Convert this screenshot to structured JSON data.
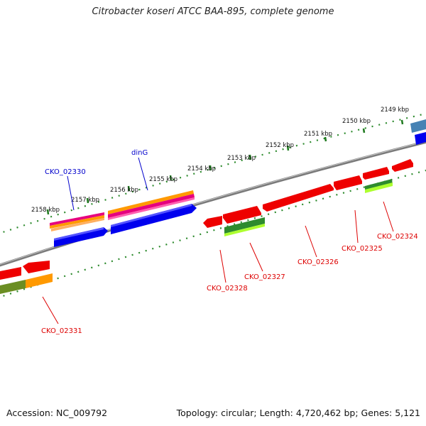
{
  "title": "Citrobacter koseri ATCC BAA-895, complete genome",
  "footer": {
    "accession": "Accession: NC_009792",
    "topology": "Topology: circular; Length: 4,720,462 bp; Genes: 5,121"
  },
  "scale_labels": [
    "2149 kbp",
    "2150 kbp",
    "2151 kbp",
    "2152 kbp",
    "2153 kbp",
    "2154 kbp",
    "2155 kbp",
    "2156 kbp",
    "2157 kbp",
    "2158 kbp"
  ],
  "gene_labels": {
    "CKO_02330": "CKO_02330",
    "dinG": "dinG",
    "CKO_02331": "CKO_02331",
    "CKO_02328": "CKO_02328",
    "CKO_02327": "CKO_02327",
    "CKO_02326": "CKO_02326",
    "CKO_02325": "CKO_02325",
    "CKO_02324": "CKO_02324"
  },
  "colors": {
    "backbone": "#808080",
    "scale_dots": "#228b22",
    "forward_cds": "#0000ee",
    "reverse_cds": "#ee0000",
    "label_forward": "#0000cc",
    "label_reverse": "#dd0000",
    "orange_feature": "#ff9900",
    "magenta_feature": "#e6007e",
    "green_feature": "#2e8b2e",
    "lime_feature": "#adff2f",
    "olive_feature": "#6b8e23",
    "steel_feature": "#4682b4"
  }
}
